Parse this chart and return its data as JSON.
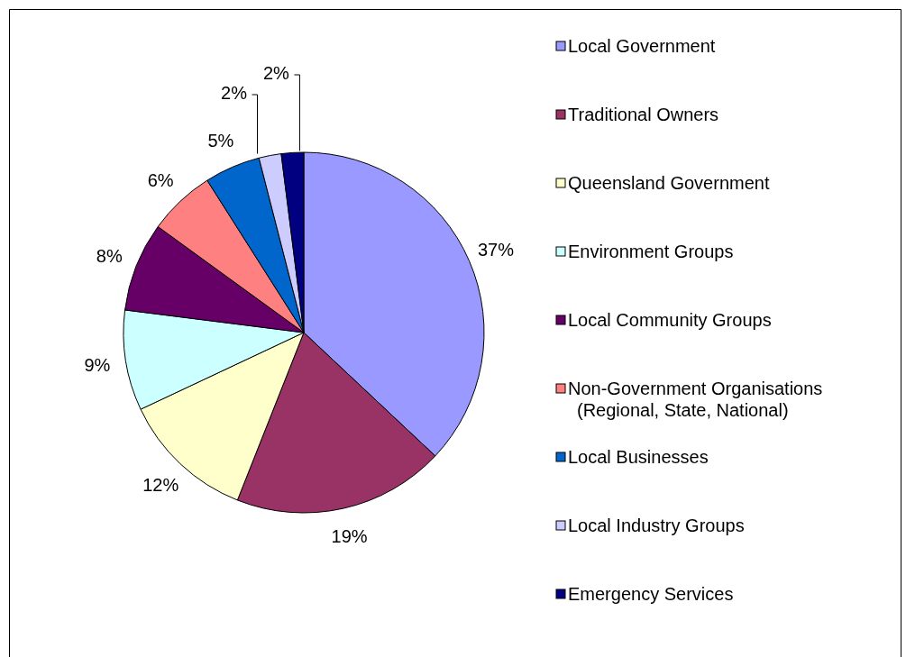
{
  "chart_data": {
    "type": "pie",
    "categories": [
      "Local Government",
      "Traditional Owners",
      "Queensland Government",
      "Environment Groups",
      "Local Community Groups",
      "Non-Government Organisations (Regional, State, National)",
      "Local Businesses",
      "Local Industry Groups",
      "Emergency Services"
    ],
    "values": [
      37,
      19,
      12,
      9,
      8,
      6,
      5,
      2,
      2
    ],
    "colors": [
      "#9999ff",
      "#993366",
      "#ffffcc",
      "#ccffff",
      "#660066",
      "#ff8080",
      "#0066cc",
      "#ccccff",
      "#000080"
    ],
    "value_labels": [
      "37%",
      "19%",
      "12%",
      "9%",
      "8%",
      "6%",
      "5%",
      "2%",
      "2%"
    ],
    "legend": "right"
  }
}
